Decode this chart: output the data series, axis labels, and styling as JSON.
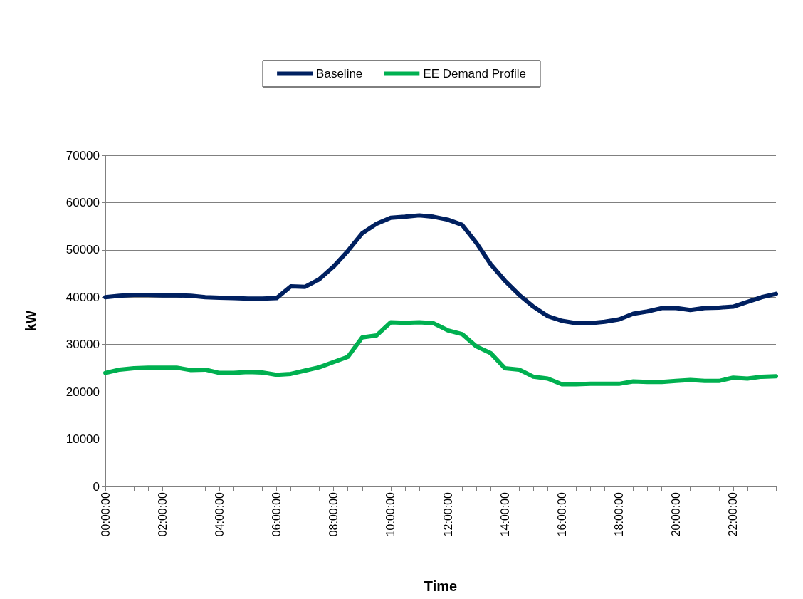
{
  "chart_data": {
    "type": "line",
    "xlabel": "Time",
    "ylabel": "kW",
    "categories": [
      "00:00:00",
      null,
      null,
      null,
      "02:00:00",
      null,
      null,
      null,
      "04:00:00",
      null,
      null,
      null,
      "06:00:00",
      null,
      null,
      null,
      "08:00:00",
      null,
      null,
      null,
      "10:00:00",
      null,
      null,
      null,
      "12:00:00",
      null,
      null,
      null,
      "14:00:00",
      null,
      null,
      null,
      "16:00:00",
      null,
      null,
      null,
      "18:00:00",
      null,
      null,
      null,
      "20:00:00",
      null,
      null,
      null,
      "22:00:00",
      null,
      null,
      null
    ],
    "series": [
      {
        "name": "Baseline",
        "color": "#002060",
        "values": [
          40000,
          40300,
          40500,
          40500,
          40400,
          40400,
          40300,
          40000,
          39900,
          39800,
          39700,
          39700,
          39800,
          42300,
          42200,
          43800,
          46500,
          49800,
          53500,
          55500,
          56800,
          57000,
          57300,
          57000,
          56400,
          55300,
          51500,
          47000,
          43500,
          40500,
          38000,
          36000,
          35000,
          34500,
          34500,
          34800,
          35300,
          36500,
          37000,
          37700,
          37700,
          37300,
          37700,
          37800,
          38000,
          39000,
          40000,
          40700
        ]
      },
      {
        "name": "EE Demand Profile",
        "color": "#00b050",
        "values": [
          24000,
          24700,
          25000,
          25100,
          25100,
          25100,
          24600,
          24700,
          24000,
          24000,
          24200,
          24100,
          23600,
          23800,
          24500,
          25200,
          26300,
          27400,
          31500,
          31900,
          34700,
          34600,
          34700,
          34500,
          33000,
          32200,
          29600,
          28200,
          25000,
          24700,
          23200,
          22800,
          21600,
          21600,
          21700,
          21700,
          21700,
          22200,
          22100,
          22100,
          22300,
          22500,
          22300,
          22300,
          23000,
          22800,
          23200,
          23300
        ]
      }
    ],
    "ylim": [
      0,
      70000
    ],
    "yticks": [
      0,
      10000,
      20000,
      30000,
      40000,
      50000,
      60000,
      70000
    ],
    "grid": "y",
    "legend": "top",
    "marker": "none",
    "line_style": "solid"
  }
}
